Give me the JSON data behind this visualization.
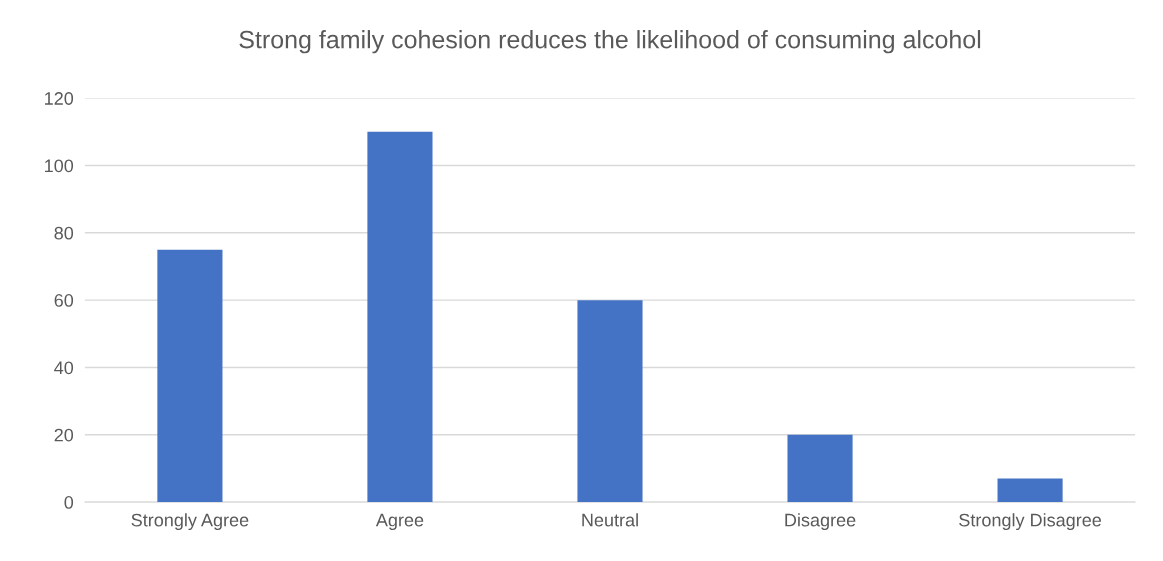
{
  "chart_data": {
    "type": "bar",
    "title": "Strong family cohesion reduces the likelihood of consuming alcohol",
    "categories": [
      "Strongly Agree",
      "Agree",
      "Neutral",
      "Disagree",
      "Strongly Disagree"
    ],
    "values": [
      75,
      110,
      60,
      20,
      7
    ],
    "color": "#4472c4",
    "ylim": [
      0,
      120
    ],
    "yticks": [
      0,
      20,
      40,
      60,
      80,
      100,
      120
    ],
    "grid": "y",
    "legend": false
  }
}
